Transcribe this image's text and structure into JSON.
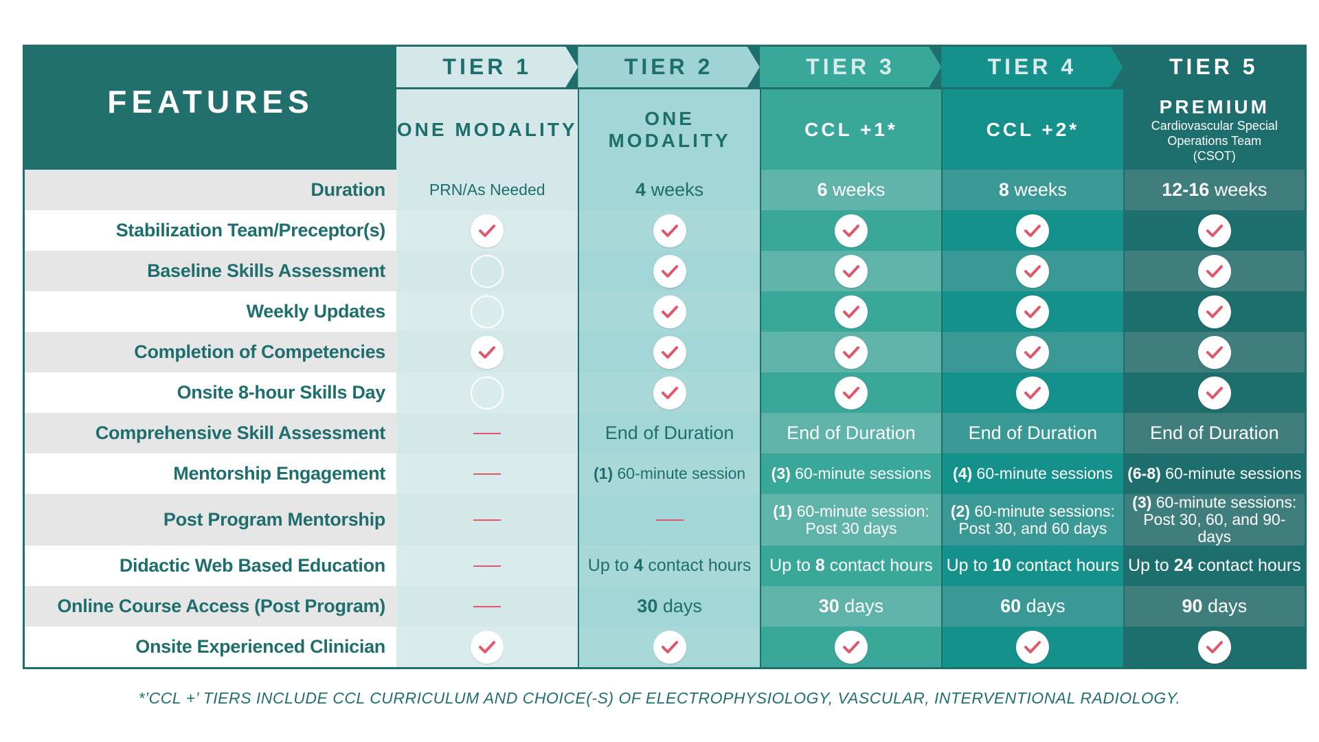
{
  "features_header": "FEATURES",
  "tiers": [
    {
      "label": "TIER 1",
      "sub_main": "ONE MODALITY",
      "sub_small": "",
      "head_bg": "#d4e8ea",
      "head_fg": "#1e6e6e",
      "sub_bg": "#d4e8ea",
      "sub_fg": "#1e6e6e",
      "col_odd": "#d4e8ea",
      "col_even": "#d9ebec",
      "fg": "#1e6e6e"
    },
    {
      "label": "TIER 2",
      "sub_main": "ONE MODALITY",
      "sub_small": "",
      "head_bg": "#9fd3d5",
      "head_fg": "#1e6e6e",
      "sub_bg": "#a3d6d7",
      "sub_fg": "#1e6e6e",
      "col_odd": "#a3d6d7",
      "col_even": "#a9d8d9",
      "fg": "#1e6e6e"
    },
    {
      "label": "TIER 3",
      "sub_main": "CCL +1*",
      "sub_small": "",
      "head_bg": "#3aa79b",
      "head_fg": "#d8eceb",
      "sub_bg": "#3aa79b",
      "sub_fg": "#ffffff",
      "col_odd": "#5fb3a8",
      "col_even": "#3aa79b",
      "fg": "#ffffff"
    },
    {
      "label": "TIER 4",
      "sub_main": "CCL +2*",
      "sub_small": "",
      "head_bg": "#16908a",
      "head_fg": "#d8eceb",
      "sub_bg": "#15918b",
      "sub_fg": "#ffffff",
      "col_odd": "#3a9994",
      "col_even": "#15918b",
      "fg": "#ffffff"
    },
    {
      "label": "TIER 5",
      "sub_main": "PREMIUM",
      "sub_small": "Cardiovascular Special Operations Team (CSOT)",
      "head_bg": "#1e6e6e",
      "head_fg": "#ffffff",
      "sub_bg": "#1e6e6e",
      "sub_fg": "#ffffff",
      "col_odd": "#3f7e7d",
      "col_even": "#1e6e6e",
      "fg": "#ffffff"
    }
  ],
  "rows": [
    {
      "feature": "Duration",
      "cells": [
        {
          "type": "text",
          "text": "PRN/As Needed"
        },
        {
          "type": "text",
          "bold": "4",
          "text": " weeks"
        },
        {
          "type": "text",
          "bold": "6",
          "text": " weeks"
        },
        {
          "type": "text",
          "bold": "8",
          "text": " weeks"
        },
        {
          "type": "text",
          "bold": "12-16",
          "text": " weeks"
        }
      ]
    },
    {
      "feature": "Stabilization Team/Preceptor(s)",
      "cells": [
        {
          "type": "check"
        },
        {
          "type": "check"
        },
        {
          "type": "check"
        },
        {
          "type": "check"
        },
        {
          "type": "check"
        }
      ]
    },
    {
      "feature": "Baseline Skills Assessment",
      "cells": [
        {
          "type": "empty"
        },
        {
          "type": "check"
        },
        {
          "type": "check"
        },
        {
          "type": "check"
        },
        {
          "type": "check"
        }
      ]
    },
    {
      "feature": "Weekly Updates",
      "cells": [
        {
          "type": "empty"
        },
        {
          "type": "check"
        },
        {
          "type": "check"
        },
        {
          "type": "check"
        },
        {
          "type": "check"
        }
      ]
    },
    {
      "feature": "Completion of Competencies",
      "cells": [
        {
          "type": "check"
        },
        {
          "type": "check"
        },
        {
          "type": "check"
        },
        {
          "type": "check"
        },
        {
          "type": "check"
        }
      ]
    },
    {
      "feature": "Onsite 8-hour Skills Day",
      "cells": [
        {
          "type": "empty"
        },
        {
          "type": "check"
        },
        {
          "type": "check"
        },
        {
          "type": "check"
        },
        {
          "type": "check"
        }
      ]
    },
    {
      "feature": "Comprehensive Skill Assessment",
      "cells": [
        {
          "type": "dash"
        },
        {
          "type": "text",
          "text": "End of Duration"
        },
        {
          "type": "text",
          "text": "End of Duration"
        },
        {
          "type": "text",
          "text": "End of Duration"
        },
        {
          "type": "text",
          "text": "End of Duration"
        }
      ]
    },
    {
      "feature": "Mentorship Engagement",
      "cells": [
        {
          "type": "dash"
        },
        {
          "type": "text",
          "bold": "(1)",
          "text": " 60-minute session"
        },
        {
          "type": "text",
          "bold": "(3)",
          "text": " 60-minute sessions"
        },
        {
          "type": "text",
          "bold": "(4)",
          "text": " 60-minute sessions"
        },
        {
          "type": "text",
          "bold": "(6-8)",
          "text": " 60-minute sessions"
        }
      ]
    },
    {
      "feature": "Post Program Mentorship",
      "cells": [
        {
          "type": "dash"
        },
        {
          "type": "dash"
        },
        {
          "type": "text2",
          "bold": "(1)",
          "text": " 60-minute session:",
          "line2": "Post 30 days"
        },
        {
          "type": "text2",
          "bold": "(2)",
          "text": " 60-minute sessions:",
          "line2": "Post 30, and 60 days"
        },
        {
          "type": "text2",
          "bold": "(3)",
          "text": " 60-minute sessions:",
          "line2": "Post 30, 60, and 90-days"
        }
      ]
    },
    {
      "feature": "Didactic Web Based Education",
      "cells": [
        {
          "type": "dash"
        },
        {
          "type": "text3",
          "pre": "Up to ",
          "bold": "4",
          "text": " contact hours"
        },
        {
          "type": "text3",
          "pre": "Up to ",
          "bold": "8",
          "text": " contact hours"
        },
        {
          "type": "text3",
          "pre": "Up to ",
          "bold": "10",
          "text": " contact hours"
        },
        {
          "type": "text3",
          "pre": "Up to ",
          "bold": "24",
          "text": " contact hours"
        }
      ]
    },
    {
      "feature": "Online Course Access (Post Program)",
      "cells": [
        {
          "type": "dash"
        },
        {
          "type": "text",
          "bold": "30",
          "text": " days"
        },
        {
          "type": "text",
          "bold": "30",
          "text": " days"
        },
        {
          "type": "text",
          "bold": "60",
          "text": " days"
        },
        {
          "type": "text",
          "bold": "90",
          "text": " days"
        }
      ]
    },
    {
      "feature": "Onsite Experienced Clinician",
      "cells": [
        {
          "type": "check"
        },
        {
          "type": "check"
        },
        {
          "type": "check"
        },
        {
          "type": "check"
        },
        {
          "type": "check"
        }
      ]
    }
  ],
  "check_color": "#e0576a",
  "footnote": "*’CCL +’ TIERS INCLUDE CCL CURRICULUM AND CHOICE(-S) OF ELECTROPHYSIOLOGY, VASCULAR, INTERVENTIONAL RADIOLOGY."
}
